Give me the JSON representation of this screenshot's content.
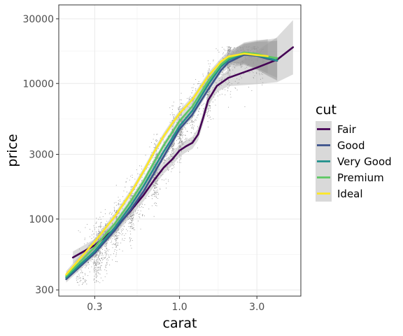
{
  "chart_data": {
    "type": "scatter",
    "title": "",
    "xlabel": "carat",
    "ylabel": "price",
    "x_scale": "log10",
    "y_scale": "log10",
    "xlim": [
      0.18,
      5.6
    ],
    "ylim": [
      270,
      38000
    ],
    "x_ticks": [
      0.3,
      1.0,
      3.0
    ],
    "x_tick_labels": [
      "0.3",
      "1.0",
      "3.0"
    ],
    "y_ticks": [
      300,
      1000,
      3000,
      10000,
      30000
    ],
    "y_tick_labels": [
      "300",
      "1000",
      "3000",
      "10000",
      "30000"
    ],
    "grid": true,
    "legend": {
      "title": "cut",
      "position": "right"
    },
    "points_note": "",
    "series": [
      {
        "name": "Fair",
        "color": "#440154",
        "x": [
          0.22,
          0.3,
          0.4,
          0.5,
          0.6,
          0.7,
          0.8,
          0.9,
          1.0,
          1.1,
          1.2,
          1.3,
          1.4,
          1.5,
          1.7,
          2.0,
          2.5,
          3.0,
          4.0,
          5.01
        ],
        "y": [
          520,
          640,
          850,
          1150,
          1500,
          1950,
          2400,
          2750,
          3200,
          3450,
          3650,
          4200,
          5600,
          7500,
          9600,
          11000,
          12100,
          13100,
          15000,
          18500
        ]
      },
      {
        "name": "Good",
        "color": "#3b528b",
        "x": [
          0.2,
          0.3,
          0.4,
          0.5,
          0.6,
          0.7,
          0.8,
          0.9,
          1.0,
          1.2,
          1.5,
          1.8,
          2.0,
          2.5,
          3.0,
          3.5,
          4.0
        ],
        "y": [
          360,
          560,
          830,
          1170,
          1600,
          2200,
          2900,
          3700,
          4600,
          5900,
          9000,
          12500,
          14300,
          16300,
          16000,
          15200,
          14700
        ]
      },
      {
        "name": "Very Good",
        "color": "#21908c",
        "x": [
          0.2,
          0.3,
          0.4,
          0.5,
          0.6,
          0.7,
          0.8,
          0.9,
          1.0,
          1.2,
          1.5,
          1.8,
          2.0,
          2.5,
          3.0,
          3.5,
          4.0
        ],
        "y": [
          370,
          580,
          870,
          1250,
          1750,
          2400,
          3150,
          3950,
          4850,
          6300,
          9800,
          13300,
          14900,
          16600,
          16100,
          15400,
          14800
        ]
      },
      {
        "name": "Premium",
        "color": "#5dc863",
        "x": [
          0.2,
          0.3,
          0.4,
          0.5,
          0.6,
          0.7,
          0.8,
          0.9,
          1.0,
          1.2,
          1.5,
          1.8,
          2.0,
          2.5,
          3.0,
          3.5,
          4.0
        ],
        "y": [
          380,
          620,
          930,
          1350,
          1900,
          2650,
          3500,
          4350,
          5300,
          6800,
          10400,
          13800,
          15300,
          16900,
          16500,
          15800,
          15400
        ]
      },
      {
        "name": "Ideal",
        "color": "#fde725",
        "x": [
          0.2,
          0.3,
          0.4,
          0.5,
          0.6,
          0.7,
          0.8,
          0.9,
          1.0,
          1.2,
          1.5,
          1.8,
          2.0,
          2.5,
          3.0,
          3.5
        ],
        "y": [
          390,
          680,
          1050,
          1550,
          2250,
          3150,
          4100,
          5050,
          6000,
          7600,
          11300,
          14500,
          15800,
          16600,
          16200,
          15900
        ]
      }
    ]
  }
}
